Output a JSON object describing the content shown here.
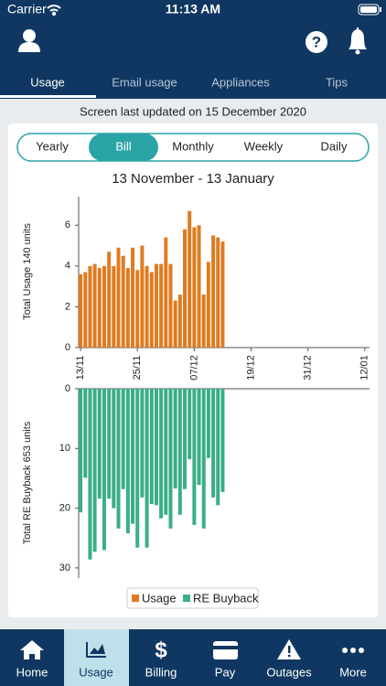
{
  "status_bar": {
    "carrier": "Carrier",
    "time": "11:13 AM"
  },
  "tabs": [
    "Usage",
    "Email usage",
    "Appliances",
    "Tips"
  ],
  "updated": "Screen last updated on 15 December 2020",
  "periods": [
    "Yearly",
    "Bill",
    "Monthly",
    "Weekly",
    "Daily"
  ],
  "period_title": "13 November - 13 January",
  "chart_data": [
    {
      "type": "bar",
      "name": "Usage",
      "y_label": "Total Usage 140 units",
      "color": "#e07b20",
      "x": [
        0,
        1,
        2,
        3,
        4,
        5,
        6,
        7,
        8,
        9,
        10,
        11,
        12,
        13,
        14,
        15,
        16,
        17,
        18,
        19,
        20,
        21,
        22,
        23,
        24,
        25,
        26,
        27,
        28,
        29,
        30
      ],
      "values": [
        3.6,
        3.7,
        4.0,
        4.1,
        3.9,
        4.0,
        4.7,
        4.0,
        4.9,
        4.5,
        3.9,
        4.9,
        3.8,
        5.0,
        4.0,
        3.7,
        4.1,
        4.1,
        5.4,
        4.1,
        2.3,
        2.6,
        5.8,
        6.7,
        5.9,
        6.0,
        2.6,
        4.2,
        5.5,
        5.4,
        5.2
      ],
      "xlim": [
        -0.4,
        61
      ],
      "xticks": [
        {
          "value": 0,
          "label": "13/11"
        },
        {
          "value": 12,
          "label": "25/11"
        },
        {
          "value": 24,
          "label": "07/12"
        },
        {
          "value": 36,
          "label": "19/12"
        },
        {
          "value": 48,
          "label": "31/12"
        },
        {
          "value": 60,
          "label": "12/01"
        }
      ],
      "ylim": [
        0,
        7.4
      ],
      "yticks": [
        0,
        2,
        4,
        6
      ],
      "y_inverted": false
    },
    {
      "type": "bar",
      "name": "RE Buyback",
      "y_label": "Total RE Buyback 653 units",
      "color": "#3aae86",
      "x": [
        0,
        1,
        2,
        3,
        4,
        5,
        6,
        7,
        8,
        9,
        10,
        11,
        12,
        13,
        14,
        15,
        16,
        17,
        18,
        19,
        20,
        21,
        22,
        23,
        24,
        25,
        26,
        27,
        28,
        29,
        30
      ],
      "values": [
        20.7,
        14.9,
        28.6,
        27.3,
        18.4,
        27.0,
        18.4,
        20.0,
        23.4,
        16.8,
        24.2,
        22.6,
        26.6,
        18.2,
        26.6,
        19.3,
        19.5,
        21.7,
        21.1,
        23.4,
        16.7,
        21.1,
        16.8,
        11.8,
        22.8,
        16.1,
        23.4,
        11.6,
        18.2,
        19.5,
        17.3
      ],
      "xlim": [
        -0.4,
        61
      ],
      "ylim": [
        0,
        31.7
      ],
      "yticks": [
        0,
        10,
        20,
        30
      ],
      "y_inverted": true
    }
  ],
  "nav": [
    "Home",
    "Usage",
    "Billing",
    "Pay",
    "Outages",
    "More"
  ]
}
